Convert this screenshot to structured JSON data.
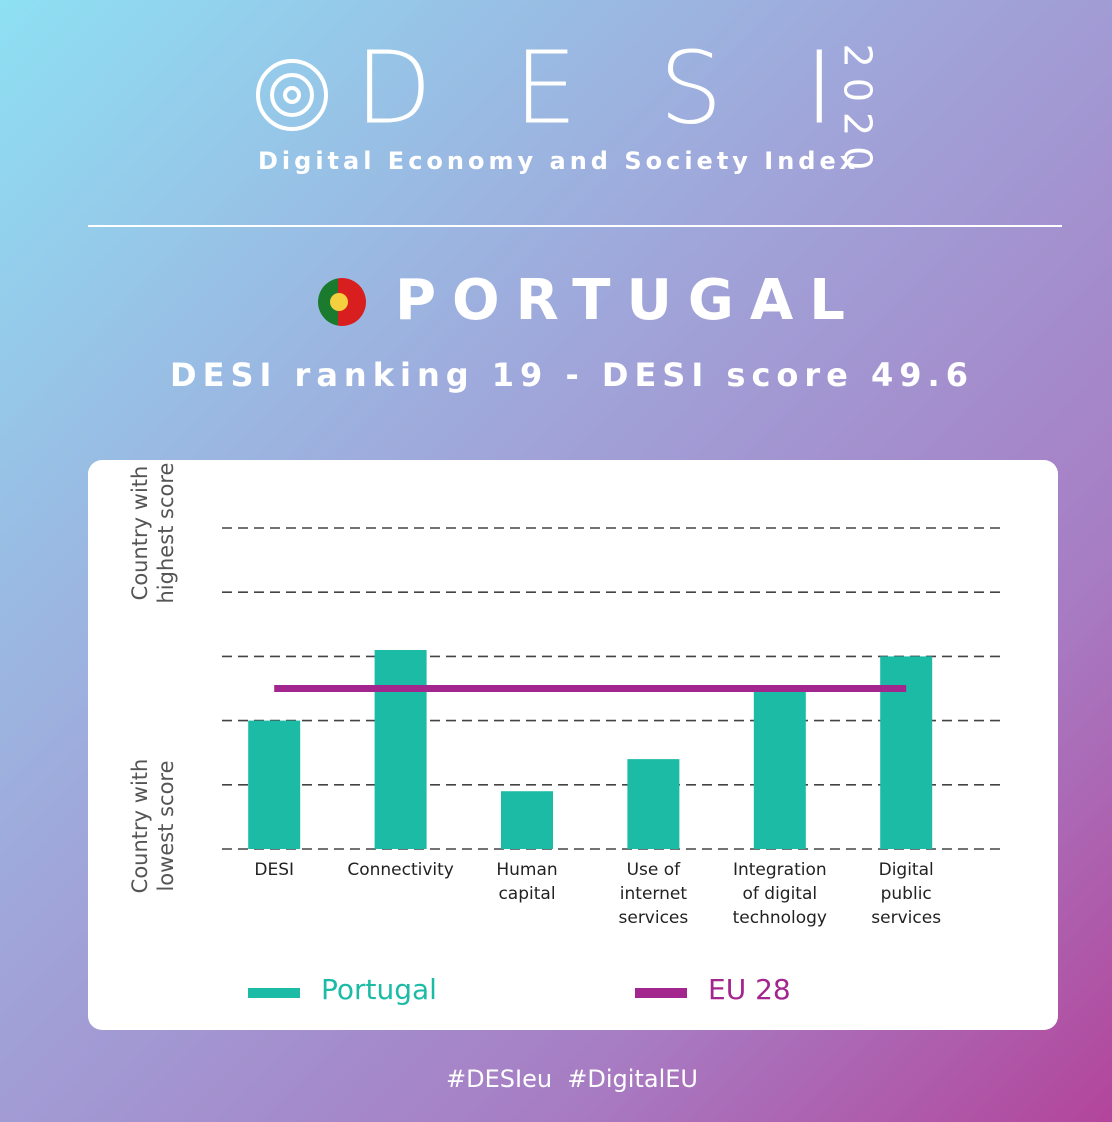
{
  "header": {
    "logo": "DESI",
    "year": "2020",
    "subtitle": "Digital Economy and Society Index",
    "country": "PORTUGAL",
    "ranking": "DESI ranking 19 - DESI score 49.6"
  },
  "chart_data": {
    "type": "bar",
    "y_label_top": "Country with highest score",
    "y_label_bottom": "Country with lowest score",
    "categories": [
      "DESI",
      "Connectivity",
      "Human capital",
      "Use of internet services",
      "Integration of digital technology",
      "Digital public services"
    ],
    "series": [
      {
        "name": "Portugal",
        "type": "bar",
        "color": "#1bbba6",
        "values": [
          2.0,
          3.1,
          0.9,
          1.4,
          2.5,
          3.0
        ]
      },
      {
        "name": "EU 28",
        "type": "line",
        "color": "#a3268e",
        "values": [
          2.5,
          2.5,
          2.5,
          2.5,
          2.5,
          2.5
        ]
      }
    ],
    "ylim": [
      0,
      5
    ],
    "yticks": [
      0,
      1,
      2,
      3,
      4,
      5
    ],
    "grid": true
  },
  "footer": "#DESIeu  #DigitalEU"
}
